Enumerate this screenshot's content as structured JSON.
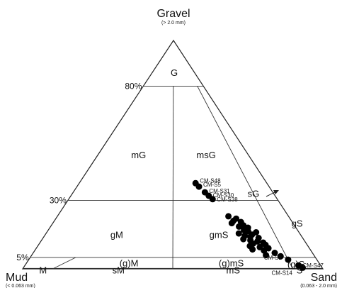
{
  "chart_data": {
    "type": "scatter",
    "subtype": "ternary",
    "vertices": {
      "top": {
        "label": "Gravel",
        "sublabel": "(> 2.0 mm)"
      },
      "left": {
        "label": "Mud",
        "sublabel": "(< 0.063 mm)"
      },
      "right": {
        "label": "Sand",
        "sublabel": "(0.063 - 2.0 mm)"
      }
    },
    "gravel_lines": [
      {
        "label": "80%",
        "value": 80
      },
      {
        "label": "30%",
        "value": 30
      },
      {
        "label": "5%",
        "value": 5
      }
    ],
    "classes": [
      "G",
      "mG",
      "msG",
      "sG",
      "gM",
      "gmS",
      "gS",
      "(g)M",
      "(g)mS",
      "(g)S",
      "M",
      "sM",
      "mS",
      "S"
    ],
    "samples": [
      {
        "label": "CM-S48",
        "gravel": 37.5,
        "sand": 62.0
      },
      {
        "label": "CM-S5",
        "gravel": 36.0,
        "sand": 63.5
      },
      {
        "label": "CM-S31",
        "gravel": 33.5,
        "sand": 66.0
      },
      {
        "label": "CM-S30",
        "gravel": 32.0,
        "sand": 67.5
      },
      {
        "label": "CM-S38",
        "gravel": 30.5,
        "sand": 69.0
      },
      {
        "label": "CM-S1",
        "gravel": 4.0,
        "sand": 90.0
      },
      {
        "label": "CM-S47",
        "gravel": 1.5,
        "sand": 92.5
      },
      {
        "label": "CM-S14",
        "gravel": 0.5,
        "sand": 93.5
      },
      {
        "label": "",
        "gravel": 23.0,
        "sand": 74.0
      },
      {
        "label": "",
        "gravel": 22.0,
        "sand": 77.0
      },
      {
        "label": "",
        "gravel": 21.0,
        "sand": 75.5
      },
      {
        "label": "",
        "gravel": 20.5,
        "sand": 78.5
      },
      {
        "label": "",
        "gravel": 20.0,
        "sand": 74.5
      },
      {
        "label": "",
        "gravel": 19.0,
        "sand": 79.0
      },
      {
        "label": "",
        "gravel": 18.5,
        "sand": 77.0
      },
      {
        "label": "",
        "gravel": 18.0,
        "sand": 80.5
      },
      {
        "label": "",
        "gravel": 17.0,
        "sand": 78.5
      },
      {
        "label": "",
        "gravel": 16.5,
        "sand": 80.0
      },
      {
        "label": "",
        "gravel": 16.0,
        "sand": 83.0
      },
      {
        "label": "",
        "gravel": 15.5,
        "sand": 76.0
      },
      {
        "label": "",
        "gravel": 15.0,
        "sand": 81.0
      },
      {
        "label": "",
        "gravel": 14.5,
        "sand": 78.0
      },
      {
        "label": "",
        "gravel": 14.0,
        "sand": 80.0
      },
      {
        "label": "",
        "gravel": 13.5,
        "sand": 83.0
      },
      {
        "label": "",
        "gravel": 13.0,
        "sand": 77.0
      },
      {
        "label": "",
        "gravel": 12.5,
        "sand": 79.5
      },
      {
        "label": "",
        "gravel": 12.0,
        "sand": 82.0
      },
      {
        "label": "",
        "gravel": 11.5,
        "sand": 84.0
      },
      {
        "label": "",
        "gravel": 11.0,
        "sand": 80.0
      },
      {
        "label": "",
        "gravel": 10.5,
        "sand": 84.5
      },
      {
        "label": "",
        "gravel": 10.0,
        "sand": 78.5
      },
      {
        "label": "",
        "gravel": 9.5,
        "sand": 82.0
      },
      {
        "label": "",
        "gravel": 9.0,
        "sand": 85.0
      },
      {
        "label": "",
        "gravel": 8.5,
        "sand": 79.0
      },
      {
        "label": "",
        "gravel": 8.0,
        "sand": 83.0
      },
      {
        "label": "",
        "gravel": 7.0,
        "sand": 86.5
      },
      {
        "label": "",
        "gravel": 6.0,
        "sand": 83.0
      },
      {
        "label": "",
        "gravel": 5.5,
        "sand": 88.0
      }
    ]
  }
}
